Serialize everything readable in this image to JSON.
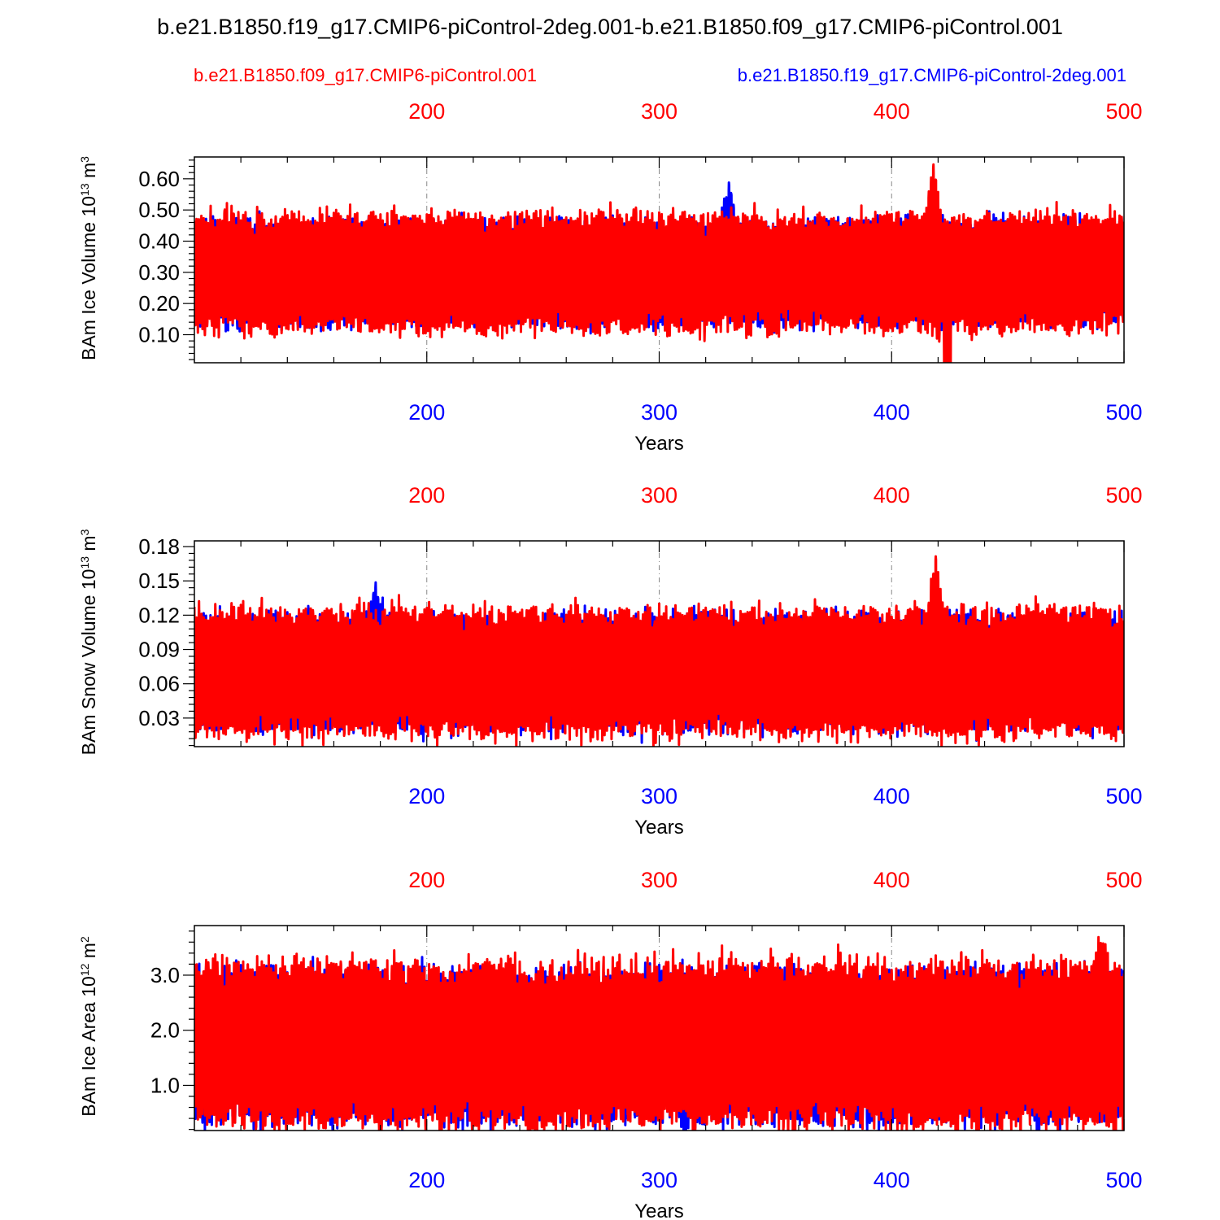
{
  "title": "b.e21.B1850.f19_g17.CMIP6-piControl-2deg.001-b.e21.B1850.f09_g17.CMIP6-piControl.001",
  "legend": {
    "red": "b.e21.B1850.f09_g17.CMIP6-piControl.001",
    "blue": "b.e21.B1850.f19_g17.CMIP6-piControl-2deg.001"
  },
  "colors": {
    "series_red": "#ff0000",
    "series_blue": "#0000ff",
    "axis": "#000000",
    "grid": "#888888"
  },
  "chart_data": [
    {
      "type": "line",
      "ylabel": "BAm Ice Volume",
      "ylabel_unit_base": "10",
      "ylabel_unit_exp": "13",
      "ylabel_unit_tail": "m",
      "ylabel_unit_tail_exp": "3",
      "xlabel": "Years",
      "xlim": [
        100,
        500
      ],
      "ylim": [
        0.01,
        0.67
      ],
      "xticks": [
        200,
        300,
        400,
        500
      ],
      "yticks": [
        0.1,
        0.2,
        0.3,
        0.4,
        0.5,
        0.6
      ],
      "ytick_labels": [
        "0.10",
        "0.20",
        "0.30",
        "0.40",
        "0.50",
        "0.60"
      ],
      "grid": "vertical dashed at major x ticks",
      "series": [
        {
          "color": "blue",
          "years": [
            100,
            500
          ],
          "min": 0.1,
          "max": 0.52,
          "mean": 0.3,
          "seasonal_amplitude": 0.15,
          "peak": [
            330,
            0.61
          ]
        },
        {
          "color": "red",
          "years": [
            100,
            500
          ],
          "min": 0.05,
          "max": 0.55,
          "mean": 0.3,
          "seasonal_amplitude": 0.17,
          "peak": [
            418,
            0.67
          ],
          "trough": [
            424,
            0.01
          ]
        }
      ]
    },
    {
      "type": "line",
      "ylabel": "BAm Snow Volume",
      "ylabel_unit_base": "10",
      "ylabel_unit_exp": "13",
      "ylabel_unit_tail": "m",
      "ylabel_unit_tail_exp": "3",
      "xlabel": "Years",
      "xlim": [
        100,
        500
      ],
      "ylim": [
        0.005,
        0.185
      ],
      "xticks": [
        200,
        300,
        400,
        500
      ],
      "yticks": [
        0.03,
        0.06,
        0.09,
        0.12,
        0.15,
        0.18
      ],
      "ytick_labels": [
        "0.03",
        "0.06",
        "0.09",
        "0.12",
        "0.15",
        "0.18"
      ],
      "grid": "vertical dashed at major x ticks",
      "series": [
        {
          "color": "blue",
          "years": [
            100,
            500
          ],
          "min": 0.015,
          "max": 0.14,
          "mean": 0.07,
          "seasonal_amplitude": 0.045,
          "peak": [
            178,
            0.158
          ]
        },
        {
          "color": "red",
          "years": [
            100,
            500
          ],
          "min": 0.008,
          "max": 0.15,
          "mean": 0.07,
          "seasonal_amplitude": 0.05,
          "peak": [
            419,
            0.184
          ]
        }
      ]
    },
    {
      "type": "line",
      "ylabel": "BAm Ice Area",
      "ylabel_unit_base": "10",
      "ylabel_unit_exp": "12",
      "ylabel_unit_tail": "m",
      "ylabel_unit_tail_exp": "2",
      "xlabel": "Years",
      "xlim": [
        100,
        500
      ],
      "ylim": [
        0.18,
        3.9
      ],
      "xticks": [
        200,
        300,
        400,
        500
      ],
      "yticks": [
        1.0,
        2.0,
        3.0
      ],
      "ytick_labels": [
        "1.0",
        "2.0",
        "3.0"
      ],
      "grid": "vertical dashed at major x ticks",
      "series": [
        {
          "color": "blue",
          "years": [
            100,
            500
          ],
          "min": 0.25,
          "max": 3.4,
          "mean": 1.7,
          "seasonal_amplitude": 1.25
        },
        {
          "color": "red",
          "years": [
            100,
            500
          ],
          "min": 0.35,
          "max": 3.7,
          "mean": 1.75,
          "seasonal_amplitude": 1.35,
          "peak": [
            490,
            3.9
          ]
        }
      ]
    }
  ]
}
